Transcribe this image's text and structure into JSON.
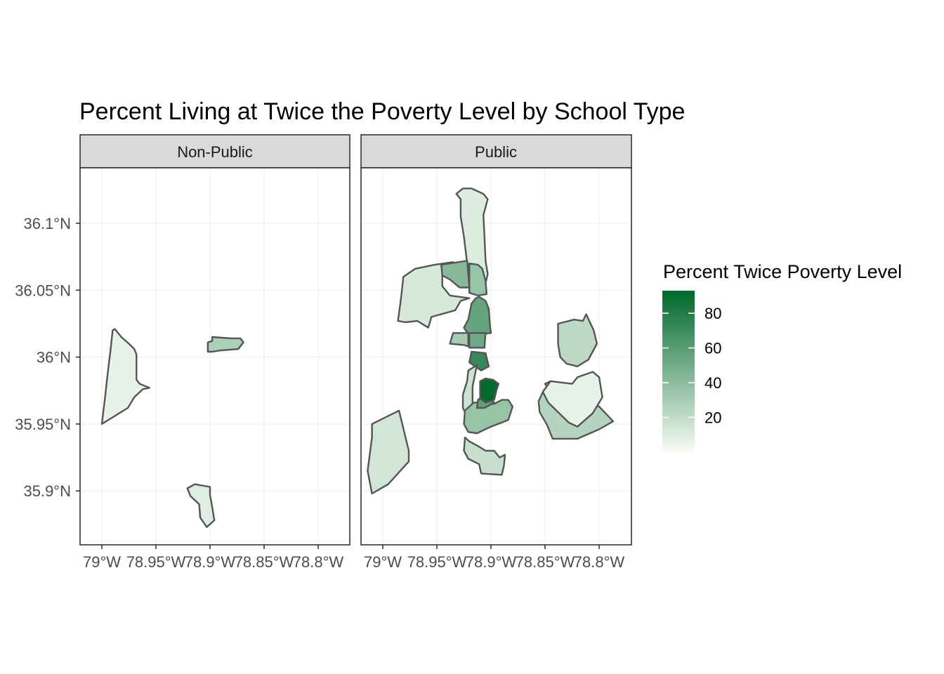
{
  "chart_data": {
    "type": "choropleth-map",
    "title": "Percent Living at Twice the Poverty Level by School Type",
    "facets": [
      "Non-Public",
      "Public"
    ],
    "x_ticks": [
      "79°W",
      "78.95°W",
      "78.9°W",
      "78.85°W",
      "78.8°W"
    ],
    "x_tick_values": [
      -79.0,
      -78.95,
      -78.9,
      -78.85,
      -78.8
    ],
    "y_ticks": [
      "36.1°N",
      "36.05°N",
      "36°N",
      "35.95°N",
      "35.9°N"
    ],
    "y_tick_values": [
      36.1,
      36.05,
      36.0,
      35.95,
      35.9
    ],
    "legend": {
      "title": "Percent Twice Poverty Level",
      "breaks": [
        20,
        40,
        60,
        80
      ],
      "break_labels": [
        "20",
        "40",
        "60",
        "80"
      ],
      "range": [
        0,
        93
      ],
      "low_color": "#f7fcf5",
      "high_color": "#00682c"
    },
    "regions": {
      "Non-Public": [
        {
          "value": 6,
          "ring": [
            [
              -79.0,
              35.95
            ],
            [
              -78.99,
              35.955
            ],
            [
              -78.976,
              35.962
            ],
            [
              -78.97,
              35.97
            ],
            [
              -78.962,
              35.976
            ],
            [
              -78.956,
              35.977
            ],
            [
              -78.965,
              35.98
            ],
            [
              -78.968,
              35.983
            ],
            [
              -78.968,
              36.002
            ],
            [
              -78.97,
              36.006
            ],
            [
              -78.975,
              36.01
            ],
            [
              -78.982,
              36.015
            ],
            [
              -78.988,
              36.021
            ],
            [
              -78.99,
              36.02
            ],
            [
              -78.992,
              36.005
            ],
            [
              -78.995,
              35.985
            ],
            [
              -78.997,
              35.97
            ]
          ]
        },
        {
          "value": 28,
          "ring": [
            [
              -78.902,
              36.004
            ],
            [
              -78.902,
              36.011
            ],
            [
              -78.898,
              36.012
            ],
            [
              -78.898,
              36.015
            ],
            [
              -78.88,
              36.014
            ],
            [
              -78.872,
              36.014
            ],
            [
              -78.869,
              36.011
            ],
            [
              -78.874,
              36.006
            ],
            [
              -78.89,
              36.005
            ],
            [
              -78.898,
              36.004
            ]
          ]
        },
        {
          "value": 9,
          "ring": [
            [
              -78.921,
              35.902
            ],
            [
              -78.914,
              35.905
            ],
            [
              -78.9,
              35.903
            ],
            [
              -78.9,
              35.897
            ],
            [
              -78.898,
              35.888
            ],
            [
              -78.896,
              35.878
            ],
            [
              -78.903,
              35.873
            ],
            [
              -78.909,
              35.88
            ],
            [
              -78.91,
              35.89
            ],
            [
              -78.918,
              35.896
            ]
          ]
        }
      ],
      "Public": [
        {
          "value": 10,
          "ring": [
            [
              -78.906,
              36.052
            ],
            [
              -78.903,
              36.062
            ],
            [
              -78.905,
              36.072
            ],
            [
              -78.906,
              36.09
            ],
            [
              -78.907,
              36.106
            ],
            [
              -78.903,
              36.118
            ],
            [
              -78.907,
              36.122
            ],
            [
              -78.918,
              36.126
            ],
            [
              -78.926,
              36.126
            ],
            [
              -78.932,
              36.122
            ],
            [
              -78.928,
              36.118
            ],
            [
              -78.928,
              36.105
            ],
            [
              -78.925,
              36.09
            ],
            [
              -78.922,
              36.07
            ]
          ]
        },
        {
          "value": 12,
          "ring": [
            [
              -78.983,
              36.045
            ],
            [
              -78.981,
              36.06
            ],
            [
              -78.97,
              36.066
            ],
            [
              -78.952,
              36.069
            ],
            [
              -78.935,
              36.071
            ],
            [
              -78.945,
              36.065
            ],
            [
              -78.945,
              36.053
            ],
            [
              -78.938,
              36.046
            ],
            [
              -78.92,
              36.044
            ],
            [
              -78.928,
              36.042
            ],
            [
              -78.933,
              36.035
            ],
            [
              -78.955,
              36.03
            ],
            [
              -78.958,
              36.022
            ],
            [
              -78.968,
              36.027
            ],
            [
              -78.979,
              36.026
            ],
            [
              -78.986,
              36.027
            ]
          ]
        },
        {
          "value": 42,
          "ring": [
            [
              -78.92,
              36.052
            ],
            [
              -78.922,
              36.072
            ],
            [
              -78.93,
              36.071
            ],
            [
              -78.946,
              36.069
            ],
            [
              -78.945,
              36.061
            ],
            [
              -78.938,
              36.058
            ],
            [
              -78.929,
              36.052
            ]
          ]
        },
        {
          "value": 36,
          "ring": [
            [
              -78.92,
              36.048
            ],
            [
              -78.92,
              36.07
            ],
            [
              -78.912,
              36.069
            ],
            [
              -78.908,
              36.066
            ],
            [
              -78.905,
              36.057
            ],
            [
              -78.904,
              36.047
            ],
            [
              -78.912,
              36.046
            ]
          ]
        },
        {
          "value": 55,
          "ring": [
            [
              -78.911,
              36.045
            ],
            [
              -78.905,
              36.042
            ],
            [
              -78.902,
              36.036
            ],
            [
              -78.901,
              36.024
            ],
            [
              -78.9,
              36.018
            ],
            [
              -78.92,
              36.016
            ],
            [
              -78.925,
              36.022
            ],
            [
              -78.921,
              36.028
            ],
            [
              -78.918,
              36.04
            ],
            [
              -78.914,
              36.044
            ]
          ]
        },
        {
          "value": 30,
          "ring": [
            [
              -78.938,
              36.01
            ],
            [
              -78.925,
              36.009
            ],
            [
              -78.921,
              36.008
            ],
            [
              -78.921,
              36.018
            ],
            [
              -78.935,
              36.018
            ]
          ]
        },
        {
          "value": 52,
          "ring": [
            [
              -78.906,
              36.007
            ],
            [
              -78.92,
              36.007
            ],
            [
              -78.92,
              36.018
            ],
            [
              -78.905,
              36.018
            ]
          ]
        },
        {
          "value": 73,
          "ring": [
            [
              -78.909,
              35.99
            ],
            [
              -78.92,
              35.996
            ],
            [
              -78.918,
              36.004
            ],
            [
              -78.905,
              36.003
            ],
            [
              -78.902,
              35.993
            ]
          ]
        },
        {
          "value": 16,
          "ring": [
            [
              -78.913,
              35.994
            ],
            [
              -78.917,
              35.978
            ],
            [
              -78.917,
              35.96
            ],
            [
              -78.921,
              35.954
            ],
            [
              -78.926,
              35.962
            ],
            [
              -78.926,
              35.972
            ],
            [
              -78.922,
              35.982
            ],
            [
              -78.921,
              35.99
            ]
          ]
        },
        {
          "value": 36,
          "ring": [
            [
              -78.925,
              35.95
            ],
            [
              -78.924,
              35.96
            ],
            [
              -78.916,
              35.966
            ],
            [
              -78.905,
              35.966
            ],
            [
              -78.897,
              35.965
            ],
            [
              -78.89,
              35.968
            ],
            [
              -78.884,
              35.968
            ],
            [
              -78.88,
              35.963
            ],
            [
              -78.884,
              35.953
            ],
            [
              -78.9,
              35.948
            ],
            [
              -78.913,
              35.943
            ],
            [
              -78.921,
              35.944
            ]
          ]
        },
        {
          "value": 58,
          "ring": [
            [
              -78.913,
              35.962
            ],
            [
              -78.912,
              35.968
            ],
            [
              -78.906,
              35.972
            ],
            [
              -78.9,
              35.968
            ],
            [
              -78.897,
              35.966
            ],
            [
              -78.906,
              35.962
            ]
          ]
        },
        {
          "value": 92,
          "ring": [
            [
              -78.91,
              35.969
            ],
            [
              -78.91,
              35.982
            ],
            [
              -78.905,
              35.984
            ],
            [
              -78.898,
              35.983
            ],
            [
              -78.893,
              35.98
            ],
            [
              -78.895,
              35.975
            ],
            [
              -78.897,
              35.968
            ],
            [
              -78.905,
              35.966
            ]
          ]
        },
        {
          "value": 18,
          "ring": [
            [
              -78.924,
              35.94
            ],
            [
              -78.925,
              35.93
            ],
            [
              -78.921,
              35.924
            ],
            [
              -78.911,
              35.92
            ],
            [
              -78.909,
              35.913
            ],
            [
              -78.89,
              35.912
            ],
            [
              -78.888,
              35.919
            ],
            [
              -78.887,
              35.927
            ],
            [
              -78.892,
              35.925
            ],
            [
              -78.897,
              35.93
            ],
            [
              -78.905,
              35.93
            ],
            [
              -78.913,
              35.934
            ],
            [
              -78.92,
              35.937
            ]
          ]
        },
        {
          "value": 14,
          "ring": [
            [
              -79.01,
              35.95
            ],
            [
              -79.01,
              35.94
            ],
            [
              -79.014,
              35.915
            ],
            [
              -79.01,
              35.898
            ],
            [
              -78.995,
              35.905
            ],
            [
              -78.976,
              35.922
            ],
            [
              -78.976,
              35.93
            ],
            [
              -78.985,
              35.96
            ]
          ]
        },
        {
          "value": 25,
          "ring": [
            [
              -78.845,
              35.982
            ],
            [
              -78.85,
              35.98
            ],
            [
              -78.848,
              35.978
            ],
            [
              -78.82,
              35.97
            ],
            [
              -78.8,
              35.963
            ],
            [
              -78.787,
              35.952
            ],
            [
              -78.8,
              35.946
            ],
            [
              -78.82,
              35.939
            ],
            [
              -78.843,
              35.939
            ],
            [
              -78.845,
              35.943
            ],
            [
              -78.848,
              35.949
            ],
            [
              -78.855,
              35.959
            ],
            [
              -78.856,
              35.967
            ],
            [
              -78.852,
              35.974
            ]
          ]
        },
        {
          "value": 6,
          "ring": [
            [
              -78.845,
              35.982
            ],
            [
              -78.825,
              35.98
            ],
            [
              -78.82,
              35.985
            ],
            [
              -78.806,
              35.989
            ],
            [
              -78.8,
              35.985
            ],
            [
              -78.797,
              35.97
            ],
            [
              -78.806,
              35.958
            ],
            [
              -78.82,
              35.948
            ],
            [
              -78.828,
              35.951
            ],
            [
              -78.847,
              35.966
            ],
            [
              -78.852,
              35.974
            ]
          ]
        },
        {
          "value": 22,
          "ring": [
            [
              -78.838,
              36.025
            ],
            [
              -78.823,
              36.028
            ],
            [
              -78.815,
              36.027
            ],
            [
              -78.812,
              36.032
            ],
            [
              -78.805,
              36.02
            ],
            [
              -78.802,
              36.01
            ],
            [
              -78.81,
              35.998
            ],
            [
              -78.82,
              35.993
            ],
            [
              -78.83,
              35.995
            ],
            [
              -78.836,
              36.0
            ],
            [
              -78.838,
              36.01
            ]
          ]
        }
      ]
    }
  }
}
